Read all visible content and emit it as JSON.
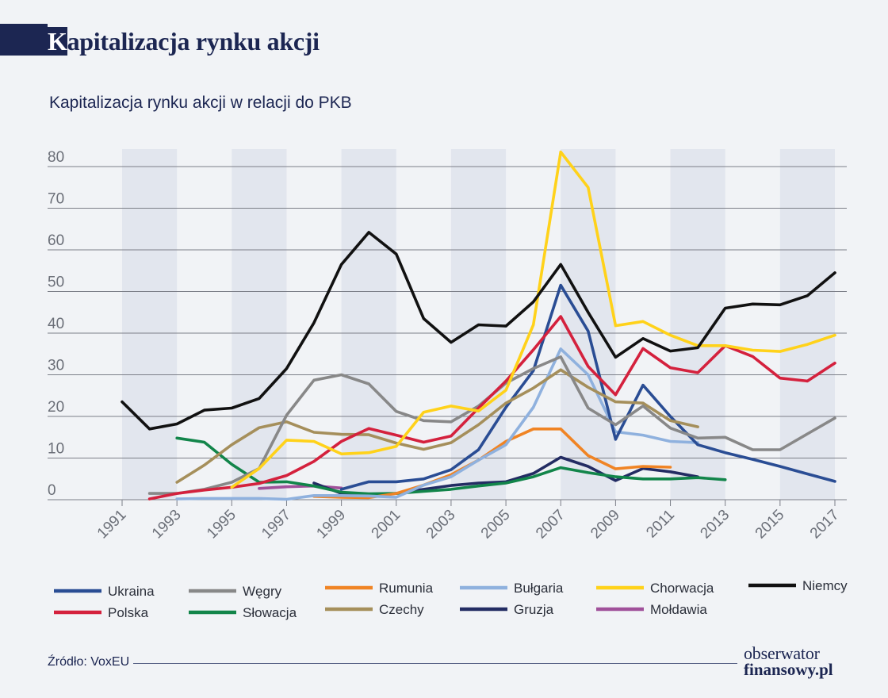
{
  "header": {
    "title_first": "K",
    "title_rest": "apitalizacja rynku akcji"
  },
  "subtitle": "Kapitalizacja rynku akcji w relacji do PKB",
  "source": "Źródło: VoxEU",
  "logo": {
    "top": "obserwator",
    "bottom": "finansowy.pl"
  },
  "colors": {
    "background": "#f1f3f6",
    "band": "#e2e6ee",
    "grid": "#7c7f88",
    "text": "#1c2652"
  },
  "chart_data": {
    "type": "line",
    "title": "Kapitalizacja rynku akcji w relacji do PKB",
    "xlabel": "",
    "ylabel": "",
    "xlim": [
      1991,
      2017
    ],
    "ylim": [
      0,
      80
    ],
    "y_ticks": [
      0,
      10,
      20,
      30,
      40,
      50,
      60,
      70,
      80
    ],
    "x_ticks": [
      1991,
      1993,
      1995,
      1997,
      1999,
      2001,
      2003,
      2005,
      2007,
      2009,
      2011,
      2013,
      2015,
      2017
    ],
    "shaded_year_spans": [
      [
        1991,
        1993
      ],
      [
        1995,
        1997
      ],
      [
        1999,
        2001
      ],
      [
        2003,
        2005
      ],
      [
        2007,
        2009
      ],
      [
        2011,
        2013
      ],
      [
        2015,
        2017
      ]
    ],
    "grid": true,
    "legend_position": "bottom",
    "series": [
      {
        "name": "Niemcy",
        "color": "#111111",
        "points": [
          [
            1991,
            23.5
          ],
          [
            1992,
            17
          ],
          [
            1993,
            18.2
          ],
          [
            1994,
            21.5
          ],
          [
            1995,
            22
          ],
          [
            1996,
            24.3
          ],
          [
            1997,
            31.5
          ],
          [
            1998,
            42.5
          ],
          [
            1999,
            56.5
          ],
          [
            2000,
            64.2
          ],
          [
            2001,
            59
          ],
          [
            2002,
            43.5
          ],
          [
            2003,
            37.8
          ],
          [
            2004,
            42
          ],
          [
            2005,
            41.7
          ],
          [
            2006,
            47.5
          ],
          [
            2007,
            56.5
          ],
          [
            2008,
            45
          ],
          [
            2009,
            34.2
          ],
          [
            2010,
            38.7
          ],
          [
            2011,
            35.7
          ],
          [
            2012,
            36.5
          ],
          [
            2013,
            46
          ],
          [
            2014,
            47
          ],
          [
            2015,
            46.8
          ],
          [
            2016,
            49
          ],
          [
            2017,
            54.5
          ]
        ]
      },
      {
        "name": "Chorwacja",
        "color": "#ffd21a",
        "points": [
          [
            1995,
            3
          ],
          [
            1996,
            7.5
          ],
          [
            1997,
            14.3
          ],
          [
            1998,
            14
          ],
          [
            1999,
            11
          ],
          [
            2000,
            11.3
          ],
          [
            2001,
            12.8
          ],
          [
            2002,
            21
          ],
          [
            2003,
            22.5
          ],
          [
            2004,
            21.3
          ],
          [
            2005,
            26.3
          ],
          [
            2006,
            42
          ],
          [
            2007,
            83.5
          ],
          [
            2008,
            75
          ],
          [
            2009,
            41.8
          ],
          [
            2010,
            42.8
          ],
          [
            2011,
            39.5
          ],
          [
            2012,
            37
          ],
          [
            2013,
            37
          ],
          [
            2014,
            35.9
          ],
          [
            2015,
            35.6
          ],
          [
            2016,
            37.3
          ],
          [
            2017,
            39.5
          ]
        ]
      },
      {
        "name": "Polska",
        "color": "#d4213d",
        "points": [
          [
            1992,
            0.2
          ],
          [
            1993,
            1.5
          ],
          [
            1994,
            2.3
          ],
          [
            1995,
            3
          ],
          [
            1996,
            3.9
          ],
          [
            1997,
            5.8
          ],
          [
            1998,
            9.2
          ],
          [
            1999,
            14
          ],
          [
            2000,
            17.1
          ],
          [
            2001,
            15.5
          ],
          [
            2002,
            13.8
          ],
          [
            2003,
            15.3
          ],
          [
            2004,
            22
          ],
          [
            2005,
            28.5
          ],
          [
            2006,
            36
          ],
          [
            2007,
            44
          ],
          [
            2008,
            32
          ],
          [
            2009,
            25.2
          ],
          [
            2010,
            36.3
          ],
          [
            2011,
            31.7
          ],
          [
            2012,
            30.5
          ],
          [
            2013,
            37
          ],
          [
            2014,
            34.4
          ],
          [
            2015,
            29.2
          ],
          [
            2016,
            28.5
          ],
          [
            2017,
            32.8
          ]
        ]
      },
      {
        "name": "Węgry",
        "color": "#888888",
        "points": [
          [
            1992,
            1.5
          ],
          [
            1993,
            1.5
          ],
          [
            1994,
            2.5
          ],
          [
            1995,
            4.2
          ],
          [
            1996,
            7.5
          ],
          [
            1997,
            20.3
          ],
          [
            1998,
            28.7
          ],
          [
            1999,
            30
          ],
          [
            2000,
            27.8
          ],
          [
            2001,
            21.2
          ],
          [
            2002,
            19
          ],
          [
            2003,
            18.7
          ],
          [
            2004,
            22.5
          ],
          [
            2005,
            28
          ],
          [
            2006,
            31.5
          ],
          [
            2007,
            34.3
          ],
          [
            2008,
            22
          ],
          [
            2009,
            18
          ],
          [
            2010,
            22.5
          ],
          [
            2011,
            17.2
          ],
          [
            2012,
            14.8
          ],
          [
            2013,
            15
          ],
          [
            2014,
            12
          ],
          [
            2015,
            12
          ],
          [
            2016,
            15.8
          ],
          [
            2017,
            19.6
          ]
        ]
      },
      {
        "name": "Czechy",
        "color": "#a58f5b",
        "points": [
          [
            1993,
            4.2
          ],
          [
            1994,
            8.3
          ],
          [
            1995,
            13.2
          ],
          [
            1996,
            17.3
          ],
          [
            1997,
            18.7
          ],
          [
            1998,
            16.2
          ],
          [
            1999,
            15.7
          ],
          [
            2000,
            15.6
          ],
          [
            2001,
            13.6
          ],
          [
            2002,
            12.1
          ],
          [
            2003,
            13.7
          ],
          [
            2004,
            18
          ],
          [
            2005,
            23.2
          ],
          [
            2006,
            26.8
          ],
          [
            2007,
            31.2
          ],
          [
            2008,
            27
          ],
          [
            2009,
            23.5
          ],
          [
            2010,
            23.2
          ],
          [
            2011,
            19
          ],
          [
            2012,
            17.5
          ]
        ]
      },
      {
        "name": "Ukraina",
        "color": "#2a4d94",
        "points": [
          [
            1999,
            2.5
          ],
          [
            2000,
            4.3
          ],
          [
            2001,
            4.3
          ],
          [
            2002,
            5
          ],
          [
            2003,
            7.2
          ],
          [
            2004,
            12
          ],
          [
            2005,
            22.2
          ],
          [
            2006,
            31
          ],
          [
            2007,
            51.5
          ],
          [
            2008,
            40.5
          ],
          [
            2009,
            14.5
          ],
          [
            2010,
            27.5
          ],
          [
            2011,
            20
          ],
          [
            2012,
            13.2
          ],
          [
            2013,
            11.3
          ],
          [
            2014,
            9.7
          ],
          [
            2015,
            8
          ],
          [
            2016,
            6.2
          ],
          [
            2017,
            4.4
          ]
        ]
      },
      {
        "name": "Bułgaria",
        "color": "#8fb1de",
        "points": [
          [
            1993,
            0.2
          ],
          [
            1994,
            0.3
          ],
          [
            1995,
            0.3
          ],
          [
            1996,
            0.3
          ],
          [
            1997,
            0.1
          ],
          [
            1998,
            1
          ],
          [
            1999,
            1
          ],
          [
            2000,
            0.9
          ],
          [
            2001,
            0.6
          ],
          [
            2002,
            3.5
          ],
          [
            2003,
            5.5
          ],
          [
            2004,
            9.5
          ],
          [
            2005,
            13.2
          ],
          [
            2006,
            22.2
          ],
          [
            2007,
            36.2
          ],
          [
            2008,
            30
          ],
          [
            2009,
            16.3
          ],
          [
            2010,
            15.5
          ],
          [
            2011,
            14
          ],
          [
            2012,
            13.7
          ]
        ]
      },
      {
        "name": "Rumunia",
        "color": "#f08424",
        "points": [
          [
            1998,
            0.8
          ],
          [
            1999,
            0.6
          ],
          [
            2000,
            0.5
          ],
          [
            2001,
            1.5
          ],
          [
            2002,
            3.5
          ],
          [
            2003,
            6
          ],
          [
            2004,
            9.5
          ],
          [
            2005,
            14
          ],
          [
            2006,
            17
          ],
          [
            2007,
            17
          ],
          [
            2008,
            10.6
          ],
          [
            2009,
            7.4
          ],
          [
            2010,
            8
          ],
          [
            2011,
            7.8
          ]
        ]
      },
      {
        "name": "Słowacja",
        "color": "#12854a",
        "points": [
          [
            1993,
            14.8
          ],
          [
            1994,
            13.8
          ],
          [
            1995,
            8.5
          ],
          [
            1996,
            4.2
          ],
          [
            1997,
            4.3
          ],
          [
            1998,
            3.3
          ],
          [
            1999,
            1.8
          ],
          [
            2000,
            1.4
          ],
          [
            2001,
            1.5
          ],
          [
            2002,
            2
          ],
          [
            2003,
            2.5
          ],
          [
            2004,
            3.3
          ],
          [
            2005,
            4
          ],
          [
            2006,
            5.5
          ],
          [
            2007,
            7.7
          ],
          [
            2008,
            6.5
          ],
          [
            2009,
            5.5
          ],
          [
            2010,
            5
          ],
          [
            2011,
            5
          ],
          [
            2012,
            5.3
          ],
          [
            2013,
            4.8
          ]
        ]
      },
      {
        "name": "Gruzja",
        "color": "#232c63",
        "points": [
          [
            1998,
            4
          ],
          [
            1999,
            1.5
          ],
          [
            2000,
            1
          ],
          [
            2001,
            1.5
          ],
          [
            2002,
            2.5
          ],
          [
            2003,
            3.4
          ],
          [
            2004,
            4
          ],
          [
            2005,
            4.3
          ],
          [
            2006,
            6.3
          ],
          [
            2007,
            10.2
          ],
          [
            2008,
            8
          ],
          [
            2009,
            4.6
          ],
          [
            2010,
            7.5
          ],
          [
            2011,
            6.7
          ],
          [
            2012,
            5.5
          ]
        ]
      },
      {
        "name": "Mołdawia",
        "color": "#a0509a",
        "points": [
          [
            1996,
            2.7
          ],
          [
            1997,
            3.1
          ],
          [
            1998,
            3.3
          ],
          [
            1999,
            2.8
          ]
        ]
      }
    ],
    "legend_order": [
      "Ukraina",
      "Polska",
      "Węgry",
      "Słowacja",
      "Rumunia",
      "Czechy",
      "Bułgaria",
      "Gruzja",
      "Chorwacja",
      "Mołdawia",
      "Niemcy"
    ]
  }
}
